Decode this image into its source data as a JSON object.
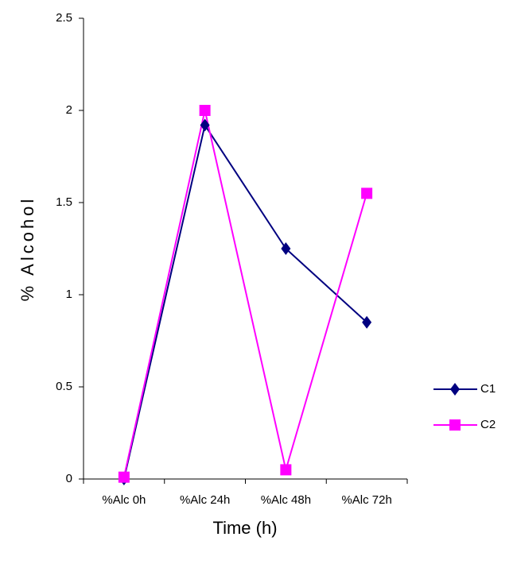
{
  "chart_data": {
    "type": "line",
    "x_label": "Time (h)",
    "y_label": "% Alcohol",
    "categories": [
      "%Alc 0h",
      "%Alc 24h",
      "%Alc 48h",
      "%Alc 72h"
    ],
    "series": [
      {
        "name": "C1",
        "color": "#000080",
        "marker": "diamond",
        "values": [
          0,
          1.92,
          1.25,
          0.85
        ]
      },
      {
        "name": "C2",
        "color": "#ff00ff",
        "marker": "square",
        "values": [
          0.01,
          2.0,
          0.05,
          1.55
        ]
      }
    ],
    "ylim": [
      0,
      2.5
    ],
    "yticks": [
      0,
      0.5,
      1,
      1.5,
      2,
      2.5
    ],
    "grid": false,
    "legend": "right"
  }
}
